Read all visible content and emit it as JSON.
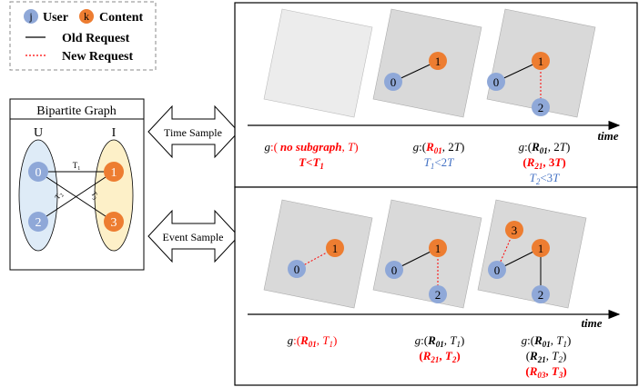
{
  "legend": {
    "user_glyph": "j",
    "user_label": "User",
    "content_glyph": "k",
    "content_label": "Content",
    "old_label": "Old Request",
    "new_label": "New Request"
  },
  "bipartite": {
    "title": "Bipartite Graph",
    "u_label": "U",
    "i_label": "I",
    "users": [
      "0",
      "2"
    ],
    "contents": [
      "1",
      "3"
    ],
    "edge_labels": [
      "T",
      "1",
      "T",
      "2",
      "T",
      "3"
    ]
  },
  "samples": {
    "time": "Time Sample",
    "event": "Event Sample"
  },
  "axis_label": "time",
  "time_panel": {
    "nodes": [
      "1",
      "0",
      "1",
      "0",
      "2"
    ],
    "cap1": [
      "g",
      ":(",
      "no subgraph",
      ", ",
      "T",
      ")"
    ],
    "cond1": [
      "T",
      "<",
      "T",
      "1"
    ],
    "cap2": [
      "g",
      ":(",
      "R",
      "01",
      ", 2",
      "T",
      ")"
    ],
    "cond2": [
      "T",
      "1",
      "<2",
      "T"
    ],
    "cap3": [
      "g",
      ":(",
      "R",
      "01",
      ", 2",
      "T",
      ")"
    ],
    "cap3b": [
      "(",
      "R",
      "21",
      ", 3",
      "T",
      ")"
    ],
    "cond3": [
      "T",
      "2",
      "<3",
      "T"
    ]
  },
  "event_panel": {
    "nodes": [
      "1",
      "0",
      "1",
      "0",
      "2",
      "3",
      "1",
      "0",
      "2"
    ],
    "cap1": [
      "g",
      ":(",
      "R",
      "01",
      ", ",
      "T",
      "1",
      ")"
    ],
    "cap2": [
      "g",
      ":(",
      "R",
      "01",
      ", ",
      "T",
      "1",
      ")"
    ],
    "cap2b": [
      "(",
      "R",
      "21",
      ", ",
      "T",
      "2",
      ")"
    ],
    "cap3": [
      "g",
      ":(",
      "R",
      "01",
      ", ",
      "T",
      "1",
      ")"
    ],
    "cap3b": [
      "(",
      "R",
      "21",
      ", ",
      "T",
      "2",
      ")"
    ],
    "cap3c": [
      "(",
      "R",
      "03",
      ", ",
      "T",
      "3",
      ")"
    ]
  },
  "colors": {
    "user": "#8fa8d8",
    "content": "#ed7d31",
    "red": "#ff0000",
    "blue": "#4472c4",
    "u_fill": "#deebf7",
    "i_fill": "#fdf0c8",
    "square": "#d9d9d9"
  }
}
